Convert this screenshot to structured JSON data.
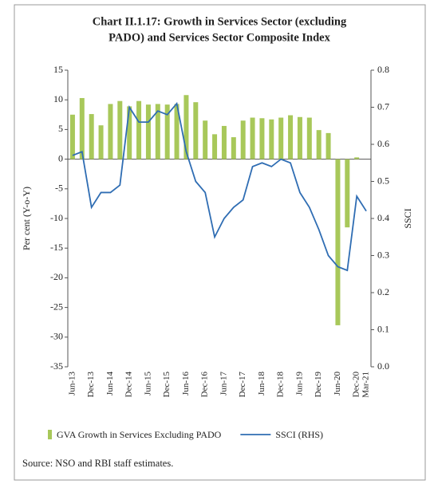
{
  "chart_data": {
    "type": "bar-line",
    "title": [
      "Chart II.1.17: Growth in Services Sector (excluding",
      "PADO) and Services Sector Composite Index"
    ],
    "ylabel": "Per cent (Y-o-Y)",
    "y2label": "SSCI",
    "source": "Source: NSO and RBI staff estimates.",
    "categories": [
      "Jun-13",
      null,
      "Dec-13",
      null,
      "Jun-14",
      null,
      "Dec-14",
      null,
      "Jun-15",
      null,
      "Dec-15",
      null,
      "Jun-16",
      null,
      "Dec-16",
      null,
      "Jun-17",
      null,
      "Dec-17",
      null,
      "Jun-18",
      null,
      "Dec-18",
      null,
      "Jun-19",
      null,
      "Dec-19",
      null,
      "Jun-20",
      null,
      "Dec-20",
      "Mar-21"
    ],
    "series": [
      {
        "name": "GVA Growth in Services Excluding PADO",
        "color": "#a8c85a",
        "kind": "bar",
        "values": [
          7.5,
          10.3,
          7.6,
          5.7,
          9.3,
          9.8,
          8.9,
          9.8,
          9.2,
          9.3,
          9.2,
          9.3,
          10.8,
          9.6,
          6.5,
          4.2,
          5.6,
          3.7,
          6.5,
          7.0,
          6.9,
          6.7,
          7.0,
          7.4,
          7.1,
          7.0,
          4.9,
          4.4,
          -28.0,
          -11.5,
          0.3,
          null
        ]
      },
      {
        "name": "SSCI (RHS)",
        "color": "#2f6db3",
        "kind": "line",
        "axis": "y2",
        "values": [
          0.57,
          0.58,
          0.43,
          0.47,
          0.47,
          0.49,
          0.7,
          0.66,
          0.66,
          0.69,
          0.68,
          0.71,
          0.58,
          0.5,
          0.47,
          0.35,
          0.4,
          0.43,
          0.45,
          0.54,
          0.55,
          0.54,
          0.56,
          0.55,
          0.47,
          0.43,
          0.37,
          0.3,
          0.27,
          0.26,
          0.46,
          0.42
        ]
      }
    ],
    "ylim": [
      -35,
      15
    ],
    "yticks": [
      15,
      10,
      5,
      0,
      -5,
      -10,
      -15,
      -20,
      -25,
      -30,
      -35
    ],
    "y2lim": [
      0,
      0.8
    ],
    "y2ticks": [
      {
        "value": 0,
        "label": "0.0"
      },
      0.1,
      0.2,
      0.3,
      0.4,
      0.5,
      0.6,
      0.7,
      0.8
    ],
    "legend": "bottom"
  }
}
